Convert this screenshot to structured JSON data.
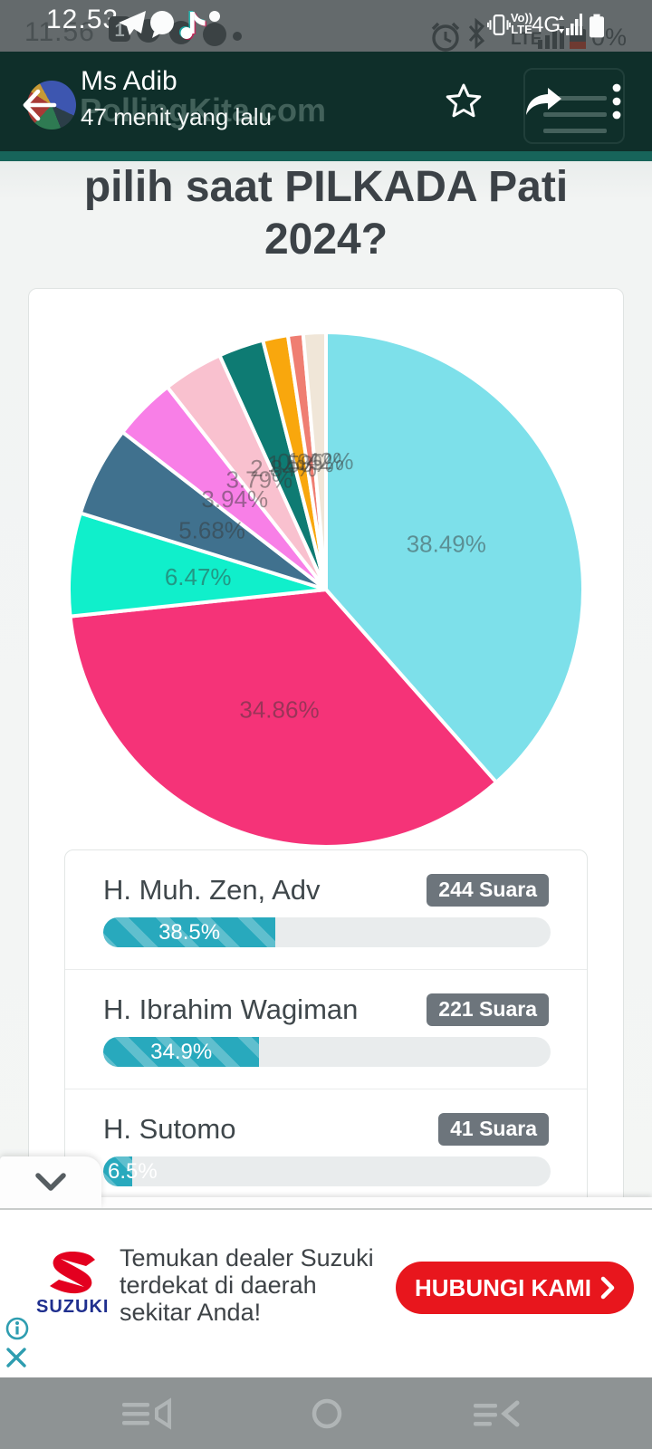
{
  "status_bar": {
    "time_overlay": "12.53",
    "time_underlay": "11.56",
    "network": "4G",
    "volte_line1": "Vo",
    "volte_line2": "LTE",
    "ghost_lte": "LTE",
    "ghost_battery_percent": "0%"
  },
  "viewer_header": {
    "contact_name": "Ms Adib",
    "timestamp": "47 menit yang lalu",
    "ghost_site_logo": "PollingKita.com"
  },
  "page": {
    "question_line1": "pilih saat PILKADA Pati",
    "question_line2": "2024?"
  },
  "chart_data": {
    "type": "pie",
    "title": "pilih saat PILKADA Pati 2024?",
    "legend_position": "none",
    "start_angle_deg": 0,
    "direction": "clockwise",
    "slices": [
      {
        "label": "38.49%",
        "value": 38.49,
        "color": "#7de0ea"
      },
      {
        "label": "34.86%",
        "value": 34.86,
        "color": "#f53378"
      },
      {
        "label": "6.47%",
        "value": 6.47,
        "color": "#10efcb"
      },
      {
        "label": "5.68%",
        "value": 5.68,
        "color": "#40718e"
      },
      {
        "label": "3.94%",
        "value": 3.94,
        "color": "#f87fe7"
      },
      {
        "label": "3.79%",
        "value": 3.79,
        "color": "#f9c1cf"
      },
      {
        "label": "2.84%",
        "value": 2.84,
        "color": "#0e7b73"
      },
      {
        "label": "1.58%",
        "value": 1.58,
        "color": "#f9a70d"
      },
      {
        "label": "0.95%",
        "value": 0.95,
        "color": "#ef7e72"
      },
      {
        "label": "1.42%",
        "value": 1.42,
        "color": "#f0e6d8"
      }
    ]
  },
  "results": [
    {
      "name": "H. Muh. Zen, Adv",
      "votes": "244 Suara",
      "percent_label": "38.5%",
      "percent": 38.5
    },
    {
      "name": "H. Ibrahim Wagiman",
      "votes": "221 Suara",
      "percent_label": "34.9%",
      "percent": 34.9
    },
    {
      "name": "H. Sutomo",
      "votes": "41 Suara",
      "percent_label": "6.5%",
      "percent": 6.5
    }
  ],
  "ad": {
    "brand": "SUZUKI",
    "logo_letter": "S",
    "line1": "Temukan dealer Suzuki",
    "line2": "terdekat di daerah",
    "line3": "sekitar Anda!",
    "cta": "HUBUNGI KAMI"
  },
  "colors": {
    "bar_fill": "#28a9bd",
    "badge_bg": "#6d757c",
    "cta_red": "#e8161d",
    "suzuki_navy": "#1f2f8e",
    "header_teal": "#0f2f2a",
    "site_teal": "#17645a",
    "adchoice_teal": "#2e9db0"
  }
}
